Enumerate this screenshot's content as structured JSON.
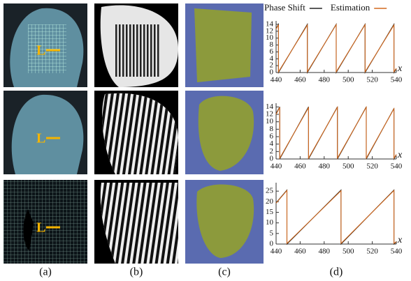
{
  "panels": [
    {
      "label": "(a)"
    },
    {
      "label": "(b)"
    },
    {
      "label": "(c)"
    },
    {
      "label": "(d)"
    }
  ],
  "marker_label": "L",
  "chart_data": [
    {
      "type": "line",
      "xlabel": "x",
      "xlim": [
        440,
        540
      ],
      "ylim": [
        0,
        15
      ],
      "xticks": [
        440,
        460,
        480,
        500,
        520,
        540
      ],
      "yticks": [
        0,
        2,
        4,
        6,
        8,
        10,
        12,
        14
      ],
      "x": [
        440,
        442,
        442,
        466,
        466,
        490,
        490,
        514,
        514,
        538,
        538,
        540
      ],
      "series": [
        {
          "name": "Phase Shift",
          "color": "#222222",
          "values": [
            12.8,
            14,
            0,
            14,
            0,
            14,
            0,
            14,
            0,
            14,
            0,
            1.1
          ]
        },
        {
          "name": "Estimation",
          "color": "#d2691e",
          "values": [
            12.6,
            13.9,
            0.2,
            13.8,
            0.2,
            13.9,
            0.2,
            13.9,
            0.2,
            13.8,
            0.2,
            1.2
          ]
        }
      ]
    },
    {
      "type": "line",
      "xlabel": "x",
      "xlim": [
        440,
        540
      ],
      "ylim": [
        0,
        15
      ],
      "xticks": [
        440,
        460,
        480,
        500,
        520,
        540
      ],
      "yticks": [
        0,
        2,
        4,
        6,
        8,
        10,
        12,
        14
      ],
      "x": [
        440,
        443,
        443,
        467,
        467,
        491,
        491,
        515,
        515,
        538,
        538,
        540
      ],
      "series": [
        {
          "name": "Phase Shift",
          "color": "#222222",
          "values": [
            12.2,
            14,
            0,
            14,
            0,
            14,
            0,
            14,
            0,
            13.6,
            0,
            1.1
          ]
        },
        {
          "name": "Estimation",
          "color": "#d2691e",
          "values": [
            12,
            13.9,
            0.2,
            13.8,
            0.2,
            13.9,
            0.2,
            13.9,
            0.2,
            13.5,
            0.2,
            1.2
          ]
        }
      ]
    },
    {
      "type": "line",
      "xlabel": "x",
      "xlim": [
        440,
        540
      ],
      "ylim": [
        0,
        29
      ],
      "xticks": [
        440,
        460,
        480,
        500,
        520,
        540
      ],
      "yticks": [
        0,
        5,
        10,
        15,
        20,
        25
      ],
      "x": [
        440,
        449,
        449,
        494,
        494,
        538,
        538,
        540
      ],
      "series": [
        {
          "name": "Phase Shift",
          "color": "#222222",
          "values": [
            19.5,
            25.5,
            0,
            25.5,
            0,
            25.5,
            0,
            1
          ]
        },
        {
          "name": "Estimation",
          "color": "#d2691e",
          "values": [
            19.3,
            25.3,
            0.3,
            25.2,
            0.3,
            25.3,
            0.3,
            1.1
          ]
        }
      ]
    }
  ]
}
